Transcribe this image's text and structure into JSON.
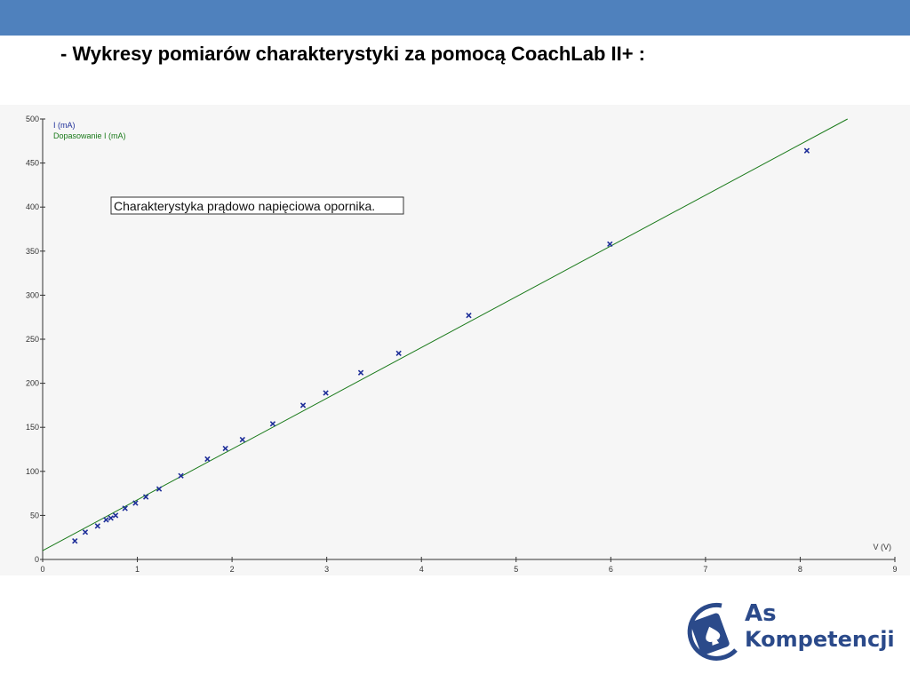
{
  "slide": {
    "title": "- Wykresy pomiarów charakterystyki za pomocą CoachLab II+ :",
    "accent_color": "#4f81bd"
  },
  "logo": {
    "line1": "As",
    "line2": "Kompetencji",
    "icon": "spade-card-circle-icon",
    "color": "#2b4a8a"
  },
  "chart_data": {
    "type": "scatter",
    "title": "Charakterystyka prądowo napięciowa opornika.",
    "xlabel": "V (V)",
    "ylabel": "",
    "xlim": [
      0,
      9
    ],
    "ylim": [
      0,
      500
    ],
    "x_ticks": [
      0,
      1,
      2,
      3,
      4,
      5,
      6,
      7,
      8,
      9
    ],
    "y_ticks": [
      0,
      50,
      100,
      150,
      200,
      250,
      300,
      350,
      400,
      450,
      500
    ],
    "grid": false,
    "legend_position": "top-left",
    "series": [
      {
        "name": "I (mA)",
        "color": "#1f2f99",
        "marker": "x",
        "x": [
          0.34,
          0.45,
          0.58,
          0.67,
          0.72,
          0.77,
          0.87,
          0.98,
          1.09,
          1.23,
          1.46,
          1.74,
          1.93,
          2.11,
          2.43,
          2.75,
          2.99,
          3.36,
          3.76,
          4.5,
          5.99,
          8.07
        ],
        "y": [
          21,
          31,
          38,
          45,
          47,
          50,
          58,
          64,
          71,
          80,
          95,
          114,
          126,
          136,
          154,
          175,
          189,
          212,
          234,
          277,
          358,
          464
        ]
      },
      {
        "name": "Dopasowanie I (mA)",
        "color": "#1a7a1a",
        "type": "line",
        "x": [
          0,
          8.5
        ],
        "y": [
          10,
          500
        ]
      }
    ]
  }
}
